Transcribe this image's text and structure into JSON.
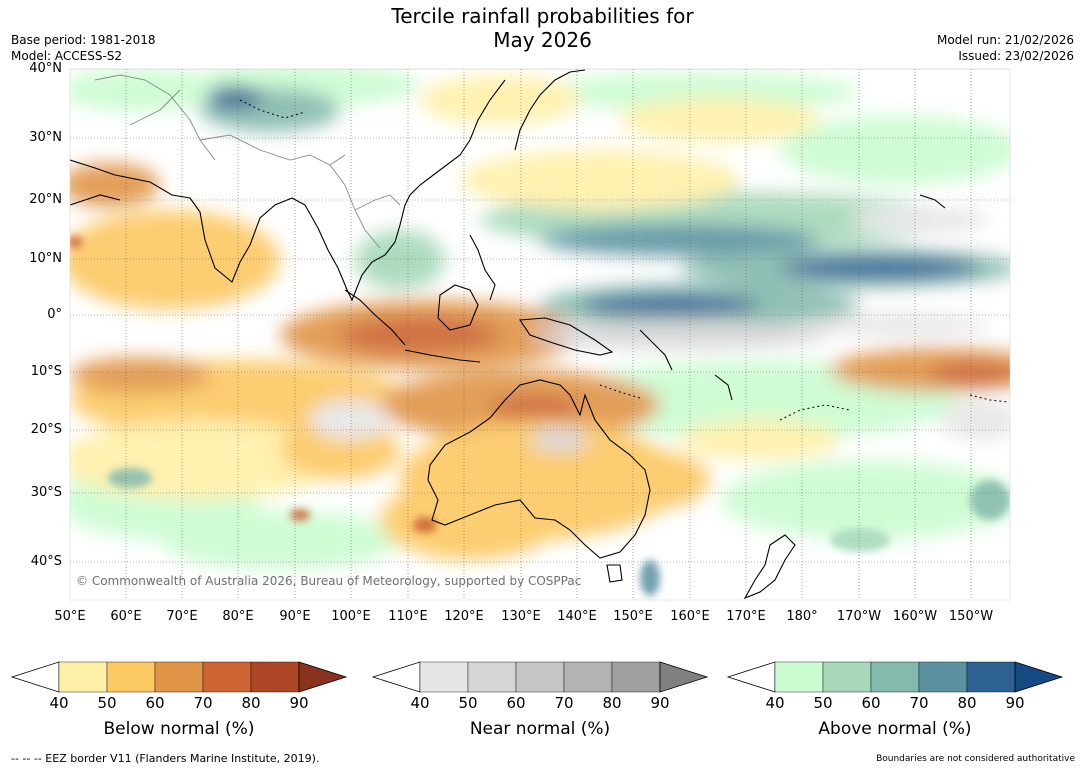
{
  "title_line1": "Tercile rainfall probabilities for",
  "title_line2": "May 2026",
  "meta_left": {
    "base_period": "Base period: 1981-2018",
    "model": "Model: ACCESS-S2"
  },
  "meta_right": {
    "model_run": "Model run: 21/02/2026",
    "issued": "Issued: 23/02/2026"
  },
  "lat_labels": [
    "40°N",
    "30°N",
    "20°N",
    "10°N",
    "0°",
    "10°S",
    "20°S",
    "30°S",
    "40°S"
  ],
  "lon_labels": [
    "50°E",
    "60°E",
    "70°E",
    "80°E",
    "90°E",
    "100°E",
    "110°E",
    "120°E",
    "130°E",
    "140°E",
    "150°E",
    "160°E",
    "170°E",
    "180°",
    "170°W",
    "160°W",
    "150°W"
  ],
  "copyright": "© Commonwealth of Australia 2026, Bureau of Meteorology, supported by COSPPac",
  "colorbars": [
    {
      "title": "Below normal (%)",
      "ticks": [
        "40",
        "50",
        "60",
        "70",
        "80",
        "90"
      ],
      "colors": [
        "#fff0a8",
        "#fcc862",
        "#e09447",
        "#cc6433",
        "#ad4625"
      ],
      "extend": "#8a3220"
    },
    {
      "title": "Near normal (%)",
      "ticks": [
        "40",
        "50",
        "60",
        "70",
        "80",
        "90"
      ],
      "colors": [
        "#e6e6e6",
        "#d6d6d6",
        "#c5c5c5",
        "#b3b3b3",
        "#a0a0a0"
      ],
      "extend": "#808080"
    },
    {
      "title": "Above normal (%)",
      "ticks": [
        "40",
        "50",
        "60",
        "70",
        "80",
        "90"
      ],
      "colors": [
        "#cbfcd0",
        "#a6d8b9",
        "#84b9ad",
        "#5a92a1",
        "#2e6193"
      ],
      "extend": "#144b82"
    }
  ],
  "footer_left": "--  --  -- EEZ border V11 (Flanders Marine Institute, 2019).",
  "footer_right": "Boundaries are not considered authoritative"
}
